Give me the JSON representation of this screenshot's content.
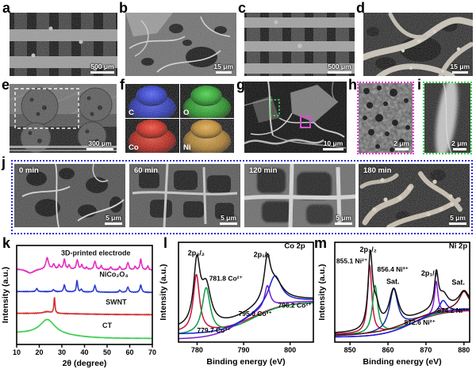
{
  "panel_letters": {
    "a": "a",
    "b": "b",
    "c": "c",
    "d": "d",
    "e": "e",
    "f": "f",
    "g": "g",
    "h": "h",
    "i": "i",
    "j": "j",
    "k": "k",
    "l": "l",
    "m": "m"
  },
  "micrographs": {
    "a": {
      "scalebar": "500 μm"
    },
    "b": {
      "scalebar": "15 μm"
    },
    "c": {
      "scalebar": "500 μm"
    },
    "d": {
      "scalebar": "15 μm"
    },
    "e": {
      "scalebar": "300 μm"
    },
    "f": {
      "labels": [
        "C",
        "O",
        "Co",
        "Ni"
      ]
    },
    "g": {
      "scalebar": "10 μm"
    },
    "h": {
      "scalebar": "2 μm"
    },
    "i": {
      "scalebar": "2 μm"
    },
    "j": [
      {
        "time": "0 min",
        "scalebar": "5 μm"
      },
      {
        "time": "60 min",
        "scalebar": "5 μm"
      },
      {
        "time": "120 min",
        "scalebar": "5 μm"
      },
      {
        "time": "180 min",
        "scalebar": "5 μm"
      }
    ]
  },
  "accents": {
    "box_h_border": "#e83ad8",
    "box_i_border": "#35d44a",
    "box_j_border": "#2e2ed6",
    "eds_colors": {
      "C": "#1d2cc9",
      "O": "#179c17",
      "Co": "#c91408",
      "Ni": "#bd7f14"
    }
  },
  "chart_data": [
    {
      "id": "xrd",
      "type": "line",
      "panel": "k",
      "title": "",
      "xlabel": "2θ (degree)",
      "ylabel": "Intensity (a.u.)",
      "xlim": [
        10,
        70
      ],
      "xticks": [
        10,
        20,
        30,
        40,
        50,
        60,
        70
      ],
      "grid": false,
      "series": [
        {
          "name": "CT",
          "color": "#3ecf52",
          "lw": 1.6,
          "noise": 0.003,
          "base": {
            "l": 0.115,
            "r": 0.06,
            "c": 32,
            "w": 7
          },
          "peaks": [
            [
              23.6,
              0.15,
              4.0
            ]
          ],
          "label": {
            "x": 50,
            "yf": 0.17
          }
        },
        {
          "name": "SWNT",
          "color": "#d63030",
          "lw": 1.6,
          "noise": 0.004,
          "base": {
            "l": 0.315,
            "r": 0.3,
            "c": 40,
            "w": 10
          },
          "peaks": [
            [
              26.7,
              0.165,
              0.28
            ],
            [
              23.5,
              0.018,
              2.0
            ]
          ],
          "label": {
            "x": 54,
            "yf": 0.405
          }
        },
        {
          "name": "NiCo₂O₄",
          "color": "#2c3ed2",
          "lw": 1.6,
          "noise": 0.004,
          "base": {
            "l": 0.535,
            "r": 0.525,
            "c": 40,
            "w": 10
          },
          "peaks": [
            [
              18.9,
              0.032,
              0.4
            ],
            [
              26.3,
              0.02,
              0.5
            ],
            [
              31.1,
              0.07,
              0.4
            ],
            [
              36.7,
              0.12,
              0.32
            ],
            [
              38.6,
              0.028,
              0.35
            ],
            [
              44.6,
              0.07,
              0.4
            ],
            [
              55.6,
              0.022,
              0.4
            ],
            [
              59.2,
              0.055,
              0.45
            ],
            [
              64.9,
              0.075,
              0.45
            ]
          ],
          "label": {
            "x": 53,
            "yf": 0.685
          }
        },
        {
          "name": "3D-printed electrode",
          "color": "#e62ec4",
          "lw": 1.6,
          "noise": 0.005,
          "base": {
            "l": 0.765,
            "r": 0.75,
            "c": 40,
            "w": 10
          },
          "peaks": [
            [
              16,
              -0.042,
              2.2
            ],
            [
              23.5,
              0.115,
              0.7
            ],
            [
              26.4,
              0.05,
              0.45
            ],
            [
              28.8,
              0.04,
              0.45
            ],
            [
              31.1,
              0.1,
              0.45
            ],
            [
              33.2,
              0.04,
              0.4
            ],
            [
              36.8,
              0.095,
              0.45
            ],
            [
              38.8,
              0.045,
              0.4
            ],
            [
              40.9,
              0.02,
              0.4
            ],
            [
              44.6,
              0.085,
              0.5
            ],
            [
              47.4,
              0.04,
              0.4
            ],
            [
              51.6,
              0.03,
              0.4
            ],
            [
              55.6,
              0.035,
              0.4
            ],
            [
              59.2,
              0.075,
              0.5
            ],
            [
              62.4,
              0.035,
              0.4
            ],
            [
              64.9,
              0.11,
              0.45
            ],
            [
              68,
              0.04,
              0.4
            ]
          ],
          "label": {
            "x": 45,
            "yf": 0.9
          }
        }
      ],
      "annotations": []
    },
    {
      "id": "co2p",
      "type": "line",
      "panel": "l",
      "title": "Co 2p",
      "xlabel": "Binding energy (eV)",
      "ylabel": "Intensity (a.u.)",
      "xlim": [
        776,
        805
      ],
      "xticks": [
        780,
        790,
        800
      ],
      "grid": false,
      "series": [
        {
          "name": "Co3+ 779.7",
          "color": "#c41440",
          "lw": 1.5,
          "base": {
            "l": 0.1,
            "r": 0.4,
            "c": 792,
            "w": 3.4
          },
          "peaks": [
            [
              779.85,
              0.57,
              0.8
            ]
          ]
        },
        {
          "name": "Co2+ 781.8",
          "color": "#0b9c43",
          "lw": 1.5,
          "base": {
            "l": 0.07,
            "r": 0.4,
            "c": 792,
            "w": 3.4
          },
          "peaks": [
            [
              781.95,
              0.46,
              1.05
            ]
          ]
        },
        {
          "name": "Co3+ 795.0",
          "color": "#7a1bd4",
          "lw": 1.5,
          "base": {
            "l": 0.03,
            "r": 0.41,
            "c": 790,
            "w": 3.2
          },
          "peaks": [
            [
              795.1,
              0.22,
              0.7
            ]
          ]
        },
        {
          "name": "Co2+ 796.2",
          "color": "#1722cf",
          "lw": 1.5,
          "base": {
            "l": 0.08,
            "r": 0.42,
            "c": 791.5,
            "w": 3.2
          },
          "peaks": [
            [
              796.7,
              0.3,
              1.7
            ]
          ]
        },
        {
          "name": "envelope",
          "color": "#121212",
          "lw": 1.5,
          "base": {
            "l": 0.13,
            "r": 0.43,
            "c": 790.8,
            "w": 3.4
          },
          "peaks": [
            [
              779.95,
              0.62,
              0.85
            ],
            [
              781.95,
              0.38,
              1.25
            ],
            [
              795.1,
              0.4,
              0.8
            ],
            [
              796.8,
              0.2,
              2.0
            ]
          ]
        }
      ],
      "annotations": [
        {
          "text": "Co 2p",
          "x": 801,
          "yf": 0.94,
          "color": "#111",
          "size": 9.5
        },
        {
          "text": "2p₃/₂",
          "x": 779.8,
          "yf": 0.87,
          "color": "#111",
          "size": 9
        },
        {
          "text": "2p₁/₂",
          "x": 793.9,
          "yf": 0.855,
          "color": "#111",
          "size": 9
        },
        {
          "text": "781.8 Co²⁺",
          "x": 782.6,
          "yf": 0.615,
          "color": "#0b9c43",
          "size": 8.5,
          "anchor": "start"
        },
        {
          "text": "795.0 Co³⁺",
          "x": 792.5,
          "yf": 0.26,
          "color": "#7a1bd4",
          "size": 8.5
        },
        {
          "text": "796.2 Co²⁺",
          "x": 804.6,
          "yf": 0.345,
          "color": "#1722cf",
          "size": 8.5,
          "anchor": "end"
        },
        {
          "text": "779.7 Co³⁺",
          "x": 783.6,
          "yf": 0.095,
          "color": "#c41440",
          "size": 8.5
        }
      ]
    },
    {
      "id": "ni2p",
      "type": "line",
      "panel": "m",
      "title": "Ni 2p",
      "xlabel": "Binding energy (eV)",
      "ylabel": "Intensity (a.u.)",
      "xlim": [
        846,
        881.5
      ],
      "xticks": [
        850,
        860,
        870,
        880
      ],
      "grid": false,
      "series": [
        {
          "name": "Ni2+ 855.1",
          "color": "#c41440",
          "lw": 1.5,
          "base": {
            "l": 0.08,
            "r": 0.32,
            "c": 867,
            "w": 4
          },
          "peaks": [
            [
              855.2,
              0.68,
              0.65
            ]
          ]
        },
        {
          "name": "Ni3+ 856.4",
          "color": "#0b9c43",
          "lw": 1.5,
          "base": {
            "l": 0.07,
            "r": 0.33,
            "c": 867,
            "w": 4
          },
          "peaks": [
            [
              856.6,
              0.48,
              0.85
            ]
          ]
        },
        {
          "name": "satellite 861.5",
          "color": "#1c2c9c",
          "lw": 1.5,
          "base": {
            "l": 0.06,
            "r": 0.34,
            "c": 866,
            "w": 4.5
          },
          "peaks": [
            [
              861.5,
              0.4,
              1.3
            ]
          ]
        },
        {
          "name": "Ni2+ 872.6",
          "color": "#8a18d8",
          "lw": 1.5,
          "base": {
            "l": 0.05,
            "r": 0.33,
            "c": 866.5,
            "w": 4
          },
          "peaks": [
            [
              872.7,
              0.33,
              0.55
            ]
          ]
        },
        {
          "name": "Ni3+ 874.2",
          "color": "#1b1bd8",
          "lw": 1.5,
          "base": {
            "l": 0.05,
            "r": 0.33,
            "c": 866.5,
            "w": 4
          },
          "peaks": [
            [
              874.5,
              0.12,
              1.2
            ]
          ]
        },
        {
          "name": "satellite 880.0",
          "color": "#701212",
          "lw": 1.5,
          "base": {
            "l": 0.07,
            "r": 0.35,
            "c": 866,
            "w": 4.5
          },
          "peaks": [
            [
              880.0,
              0.17,
              1.5
            ]
          ]
        },
        {
          "name": "envelope",
          "color": "#121212",
          "lw": 1.5,
          "base": {
            "l": 0.085,
            "r": 0.35,
            "c": 866,
            "w": 3.8
          },
          "peaks": [
            [
              855.35,
              0.73,
              0.7
            ],
            [
              856.9,
              0.2,
              1.1
            ],
            [
              861.5,
              0.37,
              1.5
            ],
            [
              872.75,
              0.35,
              0.6
            ],
            [
              874.6,
              0.13,
              1.4
            ],
            [
              880.05,
              0.16,
              1.7
            ]
          ]
        }
      ],
      "annotations": [
        {
          "text": "Ni 2p",
          "x": 880.9,
          "yf": 0.94,
          "color": "#111",
          "size": 9.5,
          "anchor": "end"
        },
        {
          "text": "2p₃/₂",
          "x": 854.8,
          "yf": 0.905,
          "color": "#111",
          "size": 9
        },
        {
          "text": "855.1 Ni²⁺",
          "x": 846.4,
          "yf": 0.79,
          "color": "#c41440",
          "size": 8.5,
          "anchor": "start"
        },
        {
          "text": "856.4 Ni³⁺",
          "x": 861.3,
          "yf": 0.705,
          "color": "#0b9c43",
          "size": 8.5
        },
        {
          "text": "Sat.",
          "x": 861.3,
          "yf": 0.585,
          "color": "#111",
          "size": 9
        },
        {
          "text": "2p₁/₂",
          "x": 870.9,
          "yf": 0.665,
          "color": "#111",
          "size": 9
        },
        {
          "text": "Sat.",
          "x": 878.5,
          "yf": 0.575,
          "color": "#111",
          "size": 9
        },
        {
          "text": "874.2 Ni³⁺",
          "x": 881.2,
          "yf": 0.295,
          "color": "#1b1bd8",
          "size": 8.5,
          "anchor": "end"
        },
        {
          "text": "872.6 Ni²⁺",
          "x": 868.4,
          "yf": 0.175,
          "color": "#8a18d8",
          "size": 8.5
        }
      ]
    }
  ]
}
